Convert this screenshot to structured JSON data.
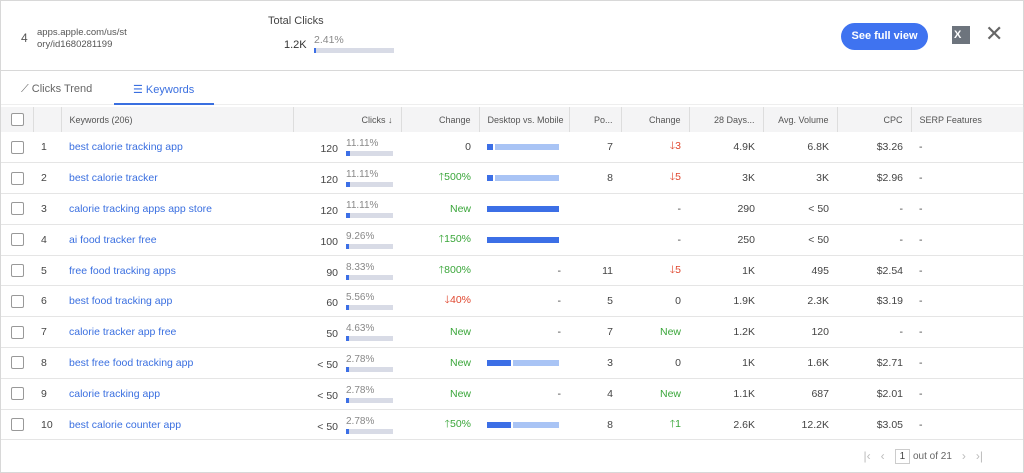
{
  "header": {
    "rank": "4",
    "url": "apps.apple.com/us/story/id1680281199",
    "total_clicks_label": "Total Clicks",
    "total_clicks_value": "1.2K",
    "total_clicks_pct": "2.41%",
    "total_clicks_share": 2.41,
    "see_full_view": "See full view",
    "excel_icon": "X",
    "close_icon": "✕"
  },
  "tabs": [
    {
      "label": "Clicks Trend",
      "icon": "trend-icon"
    },
    {
      "label": "Keywords",
      "icon": "keywords-icon",
      "active": true
    }
  ],
  "columns": [
    "",
    "",
    "Keywords (206)",
    "Clicks ↓",
    "Change",
    "Desktop vs. Mobile",
    "Po...",
    "Change",
    "28 Days...",
    "Avg. Volume",
    "CPC",
    "SERP Features"
  ],
  "rows": [
    {
      "n": "1",
      "kw": "best calorie tracking app",
      "clicks": "120",
      "pct": "11.11%",
      "share": 11.11,
      "change": "0",
      "dir": "",
      "desktop": 8,
      "pos": "7",
      "pchange": "3",
      "pdir": "dn",
      "d28": "4.9K",
      "vol": "6.8K",
      "cpc": "$3.26",
      "serp": "-"
    },
    {
      "n": "2",
      "kw": "best calorie tracker",
      "clicks": "120",
      "pct": "11.11%",
      "share": 11.11,
      "change": "500%",
      "dir": "up",
      "desktop": 8,
      "pos": "8",
      "pchange": "5",
      "pdir": "dn",
      "d28": "3K",
      "vol": "3K",
      "cpc": "$2.96",
      "serp": "-"
    },
    {
      "n": "3",
      "kw": "calorie tracking apps app store",
      "clicks": "120",
      "pct": "11.11%",
      "share": 11.11,
      "change": "New",
      "dir": "new",
      "desktop": 100,
      "pos": "",
      "pchange": "-",
      "pdir": "",
      "d28": "290",
      "vol": "< 50",
      "cpc": "-",
      "serp": "-"
    },
    {
      "n": "4",
      "kw": "ai food tracker free",
      "clicks": "100",
      "pct": "9.26%",
      "share": 9.26,
      "change": "150%",
      "dir": "up",
      "desktop": 100,
      "pos": "",
      "pchange": "-",
      "pdir": "",
      "d28": "250",
      "vol": "< 50",
      "cpc": "-",
      "serp": "-"
    },
    {
      "n": "5",
      "kw": "free food tracking apps",
      "clicks": "90",
      "pct": "8.33%",
      "share": 8.33,
      "change": "800%",
      "dir": "up",
      "desktop": null,
      "pos": "11",
      "pchange": "5",
      "pdir": "dn",
      "d28": "1K",
      "vol": "495",
      "cpc": "$2.54",
      "serp": "-"
    },
    {
      "n": "6",
      "kw": "best food tracking app",
      "clicks": "60",
      "pct": "5.56%",
      "share": 5.56,
      "change": "40%",
      "dir": "dn",
      "desktop": null,
      "pos": "5",
      "pchange": "0",
      "pdir": "",
      "d28": "1.9K",
      "vol": "2.3K",
      "cpc": "$3.19",
      "serp": "-"
    },
    {
      "n": "7",
      "kw": "calorie tracker app free",
      "clicks": "50",
      "pct": "4.63%",
      "share": 4.63,
      "change": "New",
      "dir": "new",
      "desktop": null,
      "pos": "7",
      "pchange": "New",
      "pdir": "new",
      "d28": "1.2K",
      "vol": "120",
      "cpc": "-",
      "serp": "-"
    },
    {
      "n": "8",
      "kw": "best free food tracking app",
      "clicks": "< 50",
      "pct": "2.78%",
      "share": 2.78,
      "change": "New",
      "dir": "new",
      "desktop": 33,
      "pos": "3",
      "pchange": "0",
      "pdir": "",
      "d28": "1K",
      "vol": "1.6K",
      "cpc": "$2.71",
      "serp": "-"
    },
    {
      "n": "9",
      "kw": "calorie tracking app",
      "clicks": "< 50",
      "pct": "2.78%",
      "share": 2.78,
      "change": "New",
      "dir": "new",
      "desktop": null,
      "pos": "4",
      "pchange": "New",
      "pdir": "new",
      "d28": "1.1K",
      "vol": "687",
      "cpc": "$2.01",
      "serp": "-"
    },
    {
      "n": "10",
      "kw": "best calorie counter app",
      "clicks": "< 50",
      "pct": "2.78%",
      "share": 2.78,
      "change": "50%",
      "dir": "up",
      "desktop": 33,
      "pos": "8",
      "pchange": "1",
      "pdir": "up",
      "d28": "2.6K",
      "vol": "12.2K",
      "cpc": "$3.05",
      "serp": "-"
    }
  ],
  "pager": {
    "page": "1",
    "of": "out of 21"
  },
  "colors": {
    "accent": "#3f73f0",
    "up": "#3aa63a",
    "down": "#e0472f"
  }
}
